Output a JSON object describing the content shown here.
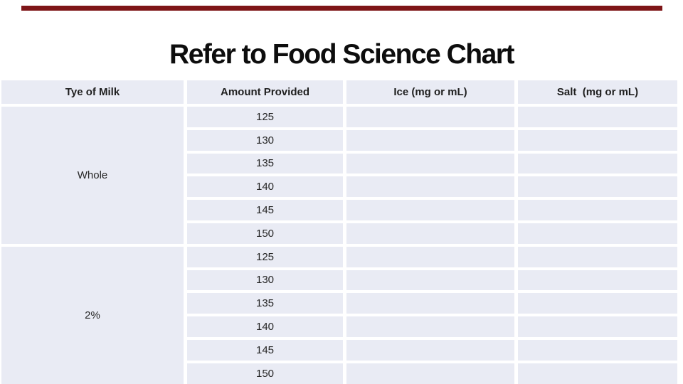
{
  "slide": {
    "title": "Refer to Food Science Chart",
    "background_color": "#FFFFFF",
    "accent_bar_color": "#7E1518"
  },
  "table": {
    "headers": [
      "Tye of Milk",
      "Amount Provided",
      "Ice (mg or mL)",
      "Salt  (mg or mL)"
    ],
    "groups": [
      {
        "milk_type": "Whole",
        "amounts": [
          125,
          130,
          135,
          140,
          145,
          150
        ],
        "ice_values": [
          "",
          "",
          "",
          "",
          "",
          ""
        ],
        "salt_values": [
          "",
          "",
          "",
          "",
          "",
          ""
        ]
      },
      {
        "milk_type": "2%",
        "amounts": [
          125,
          130,
          135,
          140,
          145,
          150
        ],
        "ice_values": [
          "",
          "",
          "",
          "",
          "",
          ""
        ],
        "salt_values": [
          "",
          "",
          "",
          "",
          "",
          ""
        ]
      }
    ],
    "colors": {
      "cell_background": "#E9EBF4",
      "header_text": "#1F1F1F",
      "cell_text": "#262626",
      "divider": "#FFFFFF"
    }
  }
}
